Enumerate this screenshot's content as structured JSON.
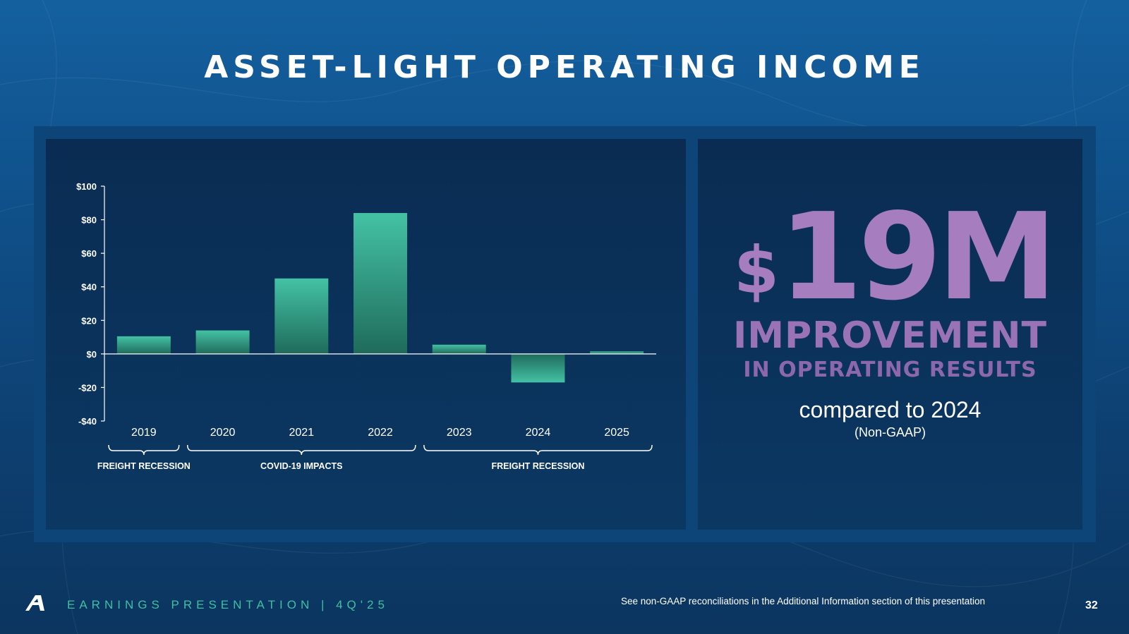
{
  "slide": {
    "title": "ASSET-LIGHT OPERATING INCOME"
  },
  "chart_data": {
    "type": "bar",
    "categories": [
      "2019",
      "2020",
      "2021",
      "2022",
      "2023",
      "2024",
      "2025"
    ],
    "values": [
      10.5,
      14,
      45,
      84,
      5.5,
      -17,
      1.5
    ],
    "ylim": [
      -40,
      100
    ],
    "yticks": [
      100,
      80,
      60,
      40,
      20,
      0,
      -20,
      -40
    ],
    "ytick_labels": [
      "$100",
      "$80",
      "$60",
      "$40",
      "$20",
      "$0",
      "-$20",
      "-$40"
    ],
    "xlabel": "",
    "ylabel": "",
    "annotations": [
      {
        "label": "FREIGHT RECESSION",
        "from_index": 0,
        "to_index": 0
      },
      {
        "label": "COVID-19 IMPACTS",
        "from_index": 1,
        "to_index": 3
      },
      {
        "label": "FREIGHT RECESSION",
        "from_index": 4,
        "to_index": 6
      }
    ],
    "bar_color_top": "#44c2a4",
    "bar_color_bottom": "#1f6b5b"
  },
  "highlight": {
    "currency": "$",
    "amount": "19M",
    "headline": "IMPROVEMENT",
    "subheadline": "IN OPERATING RESULTS",
    "comparison": "compared to 2024",
    "qualifier": "(Non-GAAP)"
  },
  "footer": {
    "logo_icon": "brand-a-logo-icon",
    "presentation_label": "EARNINGS PRESENTATION  |  4Q'25",
    "note": "See non-GAAP reconciliations in the Additional Information section of this presentation",
    "page_number": "32"
  },
  "colors": {
    "accent_teal": "#3fbf9f",
    "accent_purple": "#a67dbe",
    "background": "#0f4f88"
  }
}
